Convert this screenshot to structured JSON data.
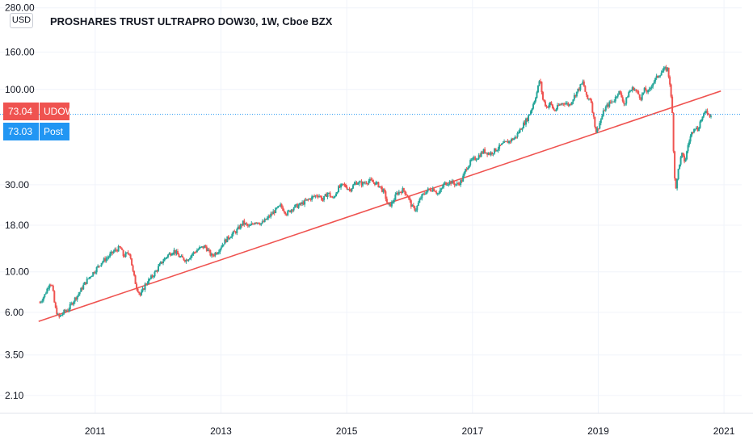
{
  "header": {
    "currency": "USD",
    "title": "PROSHARES TRUST ULTRAPRO DOW30, 1W, Cboe BZX"
  },
  "badges": {
    "last": {
      "value": "73.04",
      "label": "UDOW",
      "color": "#ef5350"
    },
    "post": {
      "value": "73.03",
      "label": "Post",
      "color": "#2196f3"
    }
  },
  "chart_data": {
    "type": "candlestick",
    "scale": "log",
    "timeframe": "1W",
    "y_ticks": [
      "280.00",
      "160.00",
      "100.00",
      "30.00",
      "18.00",
      "10.00",
      "6.00",
      "3.50",
      "2.10"
    ],
    "x_ticks": [
      "2011",
      "2013",
      "2015",
      "2017",
      "2019",
      "2021"
    ],
    "xlim": [
      2010.0,
      2021.05
    ],
    "ylim": [
      1.8,
      285
    ],
    "grid": true,
    "last_price": 73.04,
    "post_price": 73.03,
    "up_color": "#26a69a",
    "down_color": "#ef5350",
    "trendline": {
      "color": "#ef5350",
      "from": [
        2010.1,
        5.35
      ],
      "to": [
        2020.95,
        98
      ]
    },
    "series": [
      {
        "t": 2010.12,
        "v": 6.8
      },
      {
        "t": 2010.2,
        "v": 7.5
      },
      {
        "t": 2010.28,
        "v": 8.8
      },
      {
        "t": 2010.32,
        "v": 8.2
      },
      {
        "t": 2010.36,
        "v": 6.4
      },
      {
        "t": 2010.42,
        "v": 5.6
      },
      {
        "t": 2010.5,
        "v": 6.0
      },
      {
        "t": 2010.58,
        "v": 6.3
      },
      {
        "t": 2010.66,
        "v": 7.0
      },
      {
        "t": 2010.74,
        "v": 7.6
      },
      {
        "t": 2010.82,
        "v": 8.5
      },
      {
        "t": 2010.9,
        "v": 9.3
      },
      {
        "t": 2011.0,
        "v": 10.2
      },
      {
        "t": 2011.1,
        "v": 11.3
      },
      {
        "t": 2011.2,
        "v": 12.0
      },
      {
        "t": 2011.3,
        "v": 13.0
      },
      {
        "t": 2011.4,
        "v": 13.6
      },
      {
        "t": 2011.45,
        "v": 12.2
      },
      {
        "t": 2011.55,
        "v": 12.8
      },
      {
        "t": 2011.6,
        "v": 10.0
      },
      {
        "t": 2011.65,
        "v": 8.4
      },
      {
        "t": 2011.72,
        "v": 7.4
      },
      {
        "t": 2011.8,
        "v": 8.6
      },
      {
        "t": 2011.88,
        "v": 9.2
      },
      {
        "t": 2011.96,
        "v": 10.0
      },
      {
        "t": 2012.05,
        "v": 11.2
      },
      {
        "t": 2012.15,
        "v": 12.3
      },
      {
        "t": 2012.25,
        "v": 13.1
      },
      {
        "t": 2012.35,
        "v": 12.0
      },
      {
        "t": 2012.45,
        "v": 11.6
      },
      {
        "t": 2012.55,
        "v": 12.6
      },
      {
        "t": 2012.65,
        "v": 13.4
      },
      {
        "t": 2012.75,
        "v": 13.8
      },
      {
        "t": 2012.85,
        "v": 12.2
      },
      {
        "t": 2012.95,
        "v": 13.0
      },
      {
        "t": 2013.05,
        "v": 14.6
      },
      {
        "t": 2013.15,
        "v": 15.8
      },
      {
        "t": 2013.25,
        "v": 16.8
      },
      {
        "t": 2013.35,
        "v": 18.6
      },
      {
        "t": 2013.45,
        "v": 17.6
      },
      {
        "t": 2013.55,
        "v": 19.0
      },
      {
        "t": 2013.65,
        "v": 18.4
      },
      {
        "t": 2013.75,
        "v": 19.8
      },
      {
        "t": 2013.85,
        "v": 21.5
      },
      {
        "t": 2013.95,
        "v": 23.0
      },
      {
        "t": 2014.05,
        "v": 20.8
      },
      {
        "t": 2014.15,
        "v": 22.6
      },
      {
        "t": 2014.25,
        "v": 23.2
      },
      {
        "t": 2014.35,
        "v": 24.4
      },
      {
        "t": 2014.45,
        "v": 25.6
      },
      {
        "t": 2014.55,
        "v": 26.5
      },
      {
        "t": 2014.62,
        "v": 24.8
      },
      {
        "t": 2014.7,
        "v": 27.2
      },
      {
        "t": 2014.78,
        "v": 25.0
      },
      {
        "t": 2014.86,
        "v": 28.6
      },
      {
        "t": 2014.95,
        "v": 30.0
      },
      {
        "t": 2015.05,
        "v": 28.2
      },
      {
        "t": 2015.15,
        "v": 31.0
      },
      {
        "t": 2015.25,
        "v": 30.4
      },
      {
        "t": 2015.35,
        "v": 31.6
      },
      {
        "t": 2015.45,
        "v": 30.8
      },
      {
        "t": 2015.52,
        "v": 29.6
      },
      {
        "t": 2015.6,
        "v": 27.0
      },
      {
        "t": 2015.66,
        "v": 22.8
      },
      {
        "t": 2015.72,
        "v": 23.8
      },
      {
        "t": 2015.8,
        "v": 27.0
      },
      {
        "t": 2015.9,
        "v": 28.2
      },
      {
        "t": 2015.96,
        "v": 26.4
      },
      {
        "t": 2016.04,
        "v": 22.6
      },
      {
        "t": 2016.1,
        "v": 22.0
      },
      {
        "t": 2016.18,
        "v": 25.6
      },
      {
        "t": 2016.28,
        "v": 28.0
      },
      {
        "t": 2016.38,
        "v": 28.6
      },
      {
        "t": 2016.46,
        "v": 26.6
      },
      {
        "t": 2016.55,
        "v": 30.4
      },
      {
        "t": 2016.65,
        "v": 31.2
      },
      {
        "t": 2016.75,
        "v": 30.0
      },
      {
        "t": 2016.83,
        "v": 31.6
      },
      {
        "t": 2016.9,
        "v": 37.0
      },
      {
        "t": 2016.98,
        "v": 40.5
      },
      {
        "t": 2017.08,
        "v": 42.6
      },
      {
        "t": 2017.18,
        "v": 46.0
      },
      {
        "t": 2017.28,
        "v": 44.4
      },
      {
        "t": 2017.38,
        "v": 47.0
      },
      {
        "t": 2017.48,
        "v": 50.0
      },
      {
        "t": 2017.58,
        "v": 52.0
      },
      {
        "t": 2017.68,
        "v": 54.5
      },
      {
        "t": 2017.78,
        "v": 62.0
      },
      {
        "t": 2017.88,
        "v": 70.0
      },
      {
        "t": 2017.95,
        "v": 80.0
      },
      {
        "t": 2018.03,
        "v": 98.0
      },
      {
        "t": 2018.07,
        "v": 115.0
      },
      {
        "t": 2018.12,
        "v": 88.0
      },
      {
        "t": 2018.18,
        "v": 80.0
      },
      {
        "t": 2018.24,
        "v": 84.0
      },
      {
        "t": 2018.3,
        "v": 76.0
      },
      {
        "t": 2018.38,
        "v": 82.0
      },
      {
        "t": 2018.46,
        "v": 85.0
      },
      {
        "t": 2018.54,
        "v": 82.0
      },
      {
        "t": 2018.62,
        "v": 92.0
      },
      {
        "t": 2018.7,
        "v": 102.0
      },
      {
        "t": 2018.76,
        "v": 110.0
      },
      {
        "t": 2018.82,
        "v": 88.0
      },
      {
        "t": 2018.88,
        "v": 90.0
      },
      {
        "t": 2018.92,
        "v": 72.0
      },
      {
        "t": 2018.97,
        "v": 58.0
      },
      {
        "t": 2019.02,
        "v": 65.0
      },
      {
        "t": 2019.1,
        "v": 78.0
      },
      {
        "t": 2019.18,
        "v": 84.0
      },
      {
        "t": 2019.26,
        "v": 88.0
      },
      {
        "t": 2019.32,
        "v": 98.0
      },
      {
        "t": 2019.38,
        "v": 90.0
      },
      {
        "t": 2019.42,
        "v": 82.0
      },
      {
        "t": 2019.48,
        "v": 96.0
      },
      {
        "t": 2019.56,
        "v": 102.0
      },
      {
        "t": 2019.62,
        "v": 96.0
      },
      {
        "t": 2019.68,
        "v": 90.0
      },
      {
        "t": 2019.74,
        "v": 100.0
      },
      {
        "t": 2019.8,
        "v": 96.0
      },
      {
        "t": 2019.86,
        "v": 108.0
      },
      {
        "t": 2019.92,
        "v": 115.0
      },
      {
        "t": 2019.98,
        "v": 122.0
      },
      {
        "t": 2020.04,
        "v": 128.0
      },
      {
        "t": 2020.1,
        "v": 130.0
      },
      {
        "t": 2020.14,
        "v": 108.0
      },
      {
        "t": 2020.18,
        "v": 72.0
      },
      {
        "t": 2020.21,
        "v": 34.0
      },
      {
        "t": 2020.24,
        "v": 28.5
      },
      {
        "t": 2020.28,
        "v": 38.0
      },
      {
        "t": 2020.33,
        "v": 44.0
      },
      {
        "t": 2020.38,
        "v": 40.0
      },
      {
        "t": 2020.43,
        "v": 50.0
      },
      {
        "t": 2020.48,
        "v": 57.0
      },
      {
        "t": 2020.53,
        "v": 63.0
      },
      {
        "t": 2020.58,
        "v": 60.0
      },
      {
        "t": 2020.63,
        "v": 68.0
      },
      {
        "t": 2020.68,
        "v": 72.0
      },
      {
        "t": 2020.72,
        "v": 78.0
      },
      {
        "t": 2020.76,
        "v": 72.0
      },
      {
        "t": 2020.8,
        "v": 73.04
      }
    ]
  }
}
